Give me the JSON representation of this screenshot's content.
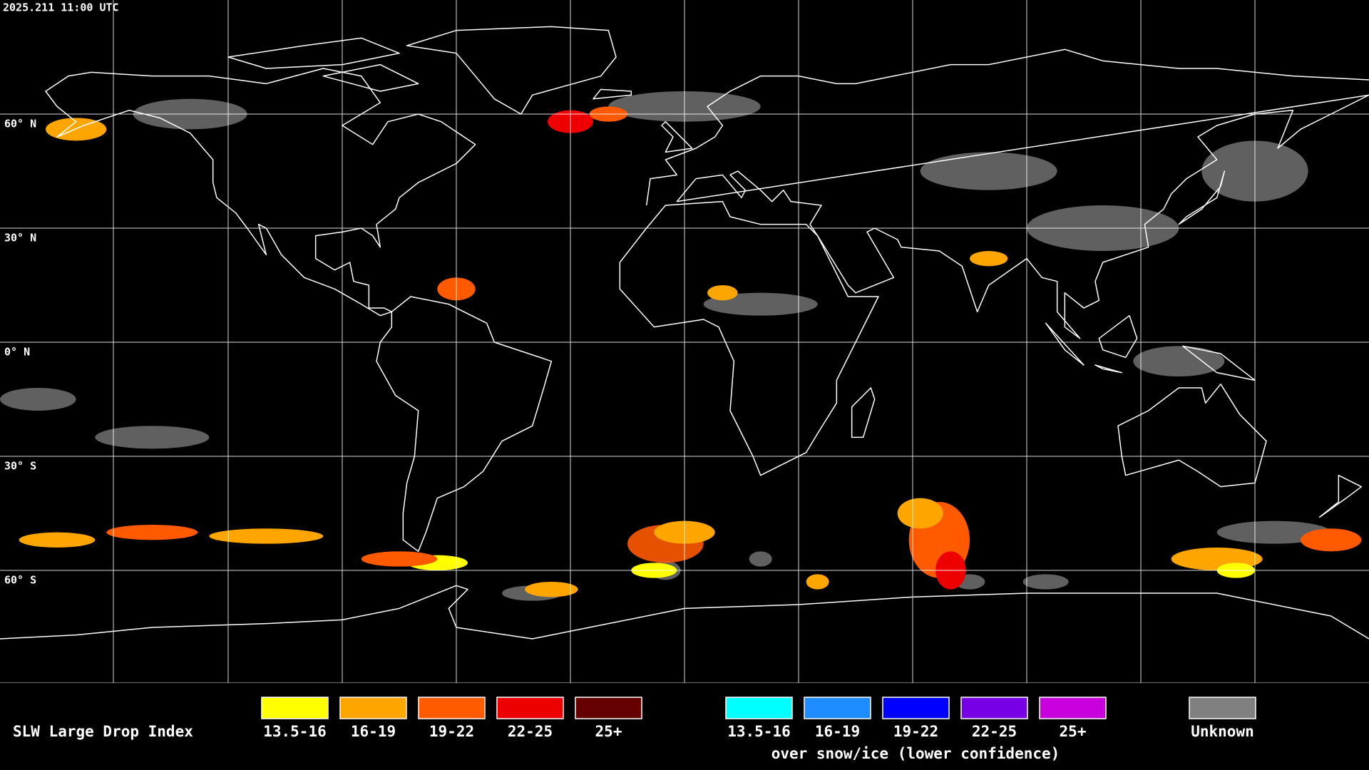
{
  "header": {
    "timestamp": "2025.211 11:00 UTC"
  },
  "map": {
    "lat_labels": [
      "60° N",
      "30° N",
      "0° N",
      "30° S",
      "60° S"
    ]
  },
  "legend": {
    "title": "SLW Large Drop Index",
    "groups": [
      {
        "items": [
          {
            "label": "13.5-16",
            "color": "#ffff00"
          },
          {
            "label": "16-19",
            "color": "#ffa500"
          },
          {
            "label": "19-22",
            "color": "#ff5a00"
          },
          {
            "label": "22-25",
            "color": "#ee0000"
          },
          {
            "label": "25+",
            "color": "#640000"
          }
        ]
      },
      {
        "items": [
          {
            "label": "13.5-16",
            "color": "#00ffff"
          },
          {
            "label": "16-19",
            "color": "#1e8cff"
          },
          {
            "label": "19-22",
            "color": "#0000ff"
          },
          {
            "label": "22-25",
            "color": "#7800e6"
          },
          {
            "label": "25+",
            "color": "#c800dc"
          }
        ],
        "caption": "over snow/ice (lower confidence)"
      }
    ],
    "unknown": {
      "label": "Unknown",
      "color": "#808080"
    }
  }
}
